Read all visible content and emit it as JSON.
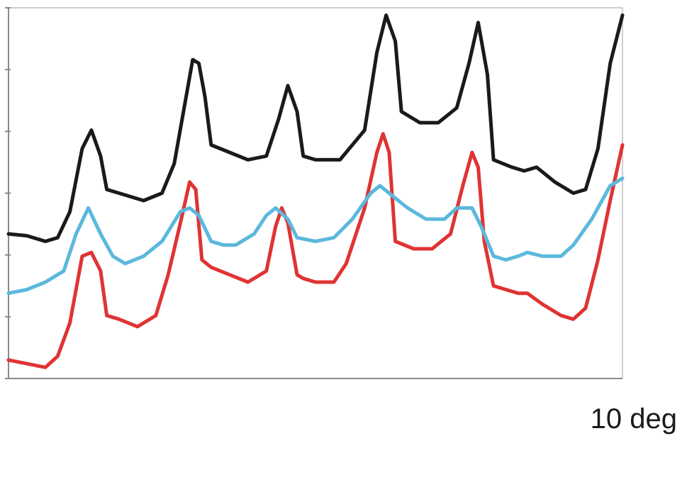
{
  "chart_data": {
    "type": "line",
    "title": "",
    "xlabel": "",
    "ylabel": "",
    "scale_label": "10 deg",
    "xlim": [
      0,
      100
    ],
    "ylim": [
      0,
      100
    ],
    "y_tick_count": 7,
    "grid": false,
    "legend": "none",
    "series": [
      {
        "color": "#1a1a1a",
        "points": [
          [
            0,
            39
          ],
          [
            3,
            38.5
          ],
          [
            6,
            37
          ],
          [
            8,
            38
          ],
          [
            10,
            45
          ],
          [
            12,
            62
          ],
          [
            13.5,
            67
          ],
          [
            15,
            60
          ],
          [
            16,
            51
          ],
          [
            18,
            50
          ],
          [
            22,
            48
          ],
          [
            25,
            50
          ],
          [
            27,
            58
          ],
          [
            28.5,
            72
          ],
          [
            30,
            86
          ],
          [
            31,
            85
          ],
          [
            32,
            76
          ],
          [
            33,
            63
          ],
          [
            36,
            61
          ],
          [
            39,
            59
          ],
          [
            42,
            60
          ],
          [
            44,
            70
          ],
          [
            45.5,
            79
          ],
          [
            47,
            72
          ],
          [
            48,
            60
          ],
          [
            50,
            59
          ],
          [
            54,
            59
          ],
          [
            58,
            67
          ],
          [
            60,
            88
          ],
          [
            61.5,
            98
          ],
          [
            63,
            91
          ],
          [
            64,
            72
          ],
          [
            67,
            69
          ],
          [
            70,
            69
          ],
          [
            73,
            73
          ],
          [
            75,
            85
          ],
          [
            76.5,
            96
          ],
          [
            78,
            82
          ],
          [
            79,
            59
          ],
          [
            82,
            57
          ],
          [
            84,
            56
          ],
          [
            86,
            57
          ],
          [
            89,
            53
          ],
          [
            92,
            50
          ],
          [
            94,
            51
          ],
          [
            96,
            62
          ],
          [
            98,
            85
          ],
          [
            100,
            98
          ]
        ]
      },
      {
        "color": "#e03333",
        "points": [
          [
            0,
            5
          ],
          [
            3,
            4
          ],
          [
            6,
            3
          ],
          [
            8,
            6
          ],
          [
            10,
            15
          ],
          [
            12,
            33
          ],
          [
            13.5,
            34
          ],
          [
            15,
            29
          ],
          [
            16,
            17
          ],
          [
            18,
            16
          ],
          [
            21,
            14
          ],
          [
            24,
            17
          ],
          [
            26,
            28
          ],
          [
            28,
            42
          ],
          [
            29.5,
            53
          ],
          [
            30.5,
            51
          ],
          [
            31.5,
            32
          ],
          [
            33,
            30
          ],
          [
            36,
            28
          ],
          [
            39,
            26
          ],
          [
            42,
            29
          ],
          [
            43.5,
            41
          ],
          [
            44.5,
            46
          ],
          [
            45.5,
            42
          ],
          [
            47,
            28
          ],
          [
            48,
            27
          ],
          [
            50,
            26
          ],
          [
            53,
            26
          ],
          [
            55,
            31
          ],
          [
            58,
            46
          ],
          [
            60,
            61
          ],
          [
            61,
            66
          ],
          [
            62,
            61
          ],
          [
            63,
            37
          ],
          [
            66,
            35
          ],
          [
            69,
            35
          ],
          [
            72,
            39
          ],
          [
            74,
            52
          ],
          [
            75.5,
            61
          ],
          [
            76.5,
            57
          ],
          [
            77.5,
            37
          ],
          [
            79,
            25
          ],
          [
            81,
            24
          ],
          [
            83,
            23
          ],
          [
            84.5,
            23
          ],
          [
            87,
            20
          ],
          [
            90,
            17
          ],
          [
            92,
            16
          ],
          [
            94,
            19
          ],
          [
            96,
            32
          ],
          [
            98,
            48
          ],
          [
            100,
            63
          ]
        ]
      },
      {
        "color": "#5bb8dc",
        "points": [
          [
            0,
            23
          ],
          [
            3,
            24
          ],
          [
            6,
            26
          ],
          [
            9,
            29
          ],
          [
            11,
            39
          ],
          [
            13,
            46
          ],
          [
            15,
            39
          ],
          [
            17,
            33
          ],
          [
            19,
            31
          ],
          [
            22,
            33
          ],
          [
            25,
            37
          ],
          [
            28,
            45
          ],
          [
            29.5,
            46
          ],
          [
            31,
            44
          ],
          [
            33,
            37
          ],
          [
            35,
            36
          ],
          [
            37,
            36
          ],
          [
            40,
            39
          ],
          [
            42,
            44
          ],
          [
            43.5,
            46
          ],
          [
            45.5,
            43
          ],
          [
            47,
            38
          ],
          [
            50,
            37
          ],
          [
            53,
            38
          ],
          [
            56,
            43
          ],
          [
            59,
            50
          ],
          [
            60.5,
            52
          ],
          [
            62,
            50
          ],
          [
            65,
            46
          ],
          [
            68,
            43
          ],
          [
            71,
            43
          ],
          [
            73,
            46
          ],
          [
            75.5,
            46
          ],
          [
            77,
            41
          ],
          [
            79,
            33
          ],
          [
            81,
            32
          ],
          [
            83,
            33
          ],
          [
            84.5,
            34
          ],
          [
            87,
            33
          ],
          [
            90,
            33
          ],
          [
            92,
            36
          ],
          [
            95,
            43
          ],
          [
            98,
            52
          ],
          [
            100,
            54
          ]
        ]
      }
    ]
  }
}
